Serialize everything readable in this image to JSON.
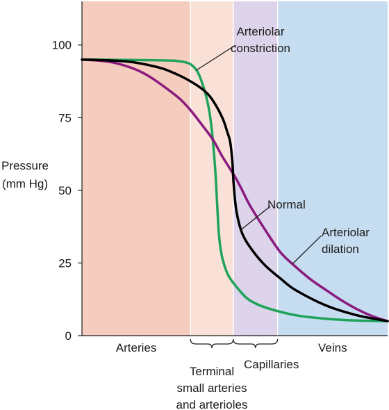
{
  "chart_data": {
    "type": "line",
    "title": "",
    "ylabel": [
      "Pressure",
      "(mm Hg)"
    ],
    "xlabel": "",
    "ylim": [
      0,
      115
    ],
    "yticks": [
      0,
      25,
      50,
      75,
      100
    ],
    "grid": false,
    "regions": [
      {
        "name": "Arteries",
        "color": "#f4cdbf"
      },
      {
        "name": "Terminal small arteries and arterioles",
        "lines": [
          "Terminal",
          "small arteries",
          "and arterioles"
        ],
        "color": "#fae1d8"
      },
      {
        "name": "Capillaries",
        "color": "#ddd3ea"
      },
      {
        "name": "Veins",
        "color": "#c6dcf0"
      }
    ],
    "series": [
      {
        "name": "Normal",
        "color": "#000000",
        "points": [
          [
            0,
            95
          ],
          [
            15,
            94.3
          ],
          [
            25,
            92.3
          ],
          [
            30,
            90.4
          ],
          [
            35,
            87.8
          ],
          [
            40,
            84.3
          ],
          [
            43,
            80.6
          ],
          [
            46,
            74.8
          ],
          [
            47.5,
            70.2
          ],
          [
            48.5,
            66.6
          ],
          [
            49.2,
            59.9
          ],
          [
            49.6,
            52.7
          ],
          [
            50.5,
            43.1
          ],
          [
            52.5,
            35
          ],
          [
            56,
            29
          ],
          [
            60,
            24.1
          ],
          [
            65,
            19.6
          ],
          [
            70,
            15.6
          ],
          [
            80,
            10.3
          ],
          [
            90,
            7
          ],
          [
            100,
            5
          ]
        ]
      },
      {
        "name": "Arteriolar constriction",
        "lines": [
          "Arteriolar",
          "constriction"
        ],
        "color": "#1ea358",
        "points": [
          [
            0,
            95
          ],
          [
            20,
            94.8
          ],
          [
            30,
            94.6
          ],
          [
            34,
            94
          ],
          [
            36,
            93
          ],
          [
            38,
            90.4
          ],
          [
            40,
            84.7
          ],
          [
            41.5,
            78.2
          ],
          [
            42.5,
            70.6
          ],
          [
            43.5,
            58.6
          ],
          [
            44,
            50
          ],
          [
            44.5,
            39.8
          ],
          [
            45,
            32.8
          ],
          [
            46,
            26.4
          ],
          [
            48,
            20.5
          ],
          [
            52,
            15
          ],
          [
            55,
            12.1
          ],
          [
            60,
            9.7
          ],
          [
            70,
            7
          ],
          [
            80,
            5.8
          ],
          [
            90,
            5.2
          ],
          [
            100,
            5
          ]
        ]
      },
      {
        "name": "Arteriolar dilation",
        "lines": [
          "Arteriolar",
          "dilation"
        ],
        "color": "#8a1a7e",
        "points": [
          [
            0,
            95
          ],
          [
            10,
            94
          ],
          [
            20,
            90.4
          ],
          [
            30,
            83.2
          ],
          [
            35,
            78.2
          ],
          [
            40,
            71.5
          ],
          [
            43,
            67.2
          ],
          [
            46,
            61.5
          ],
          [
            50,
            54.8
          ],
          [
            52,
            50.9
          ],
          [
            55,
            44.7
          ],
          [
            60,
            36.3
          ],
          [
            65,
            28.6
          ],
          [
            70,
            23.6
          ],
          [
            75,
            19.2
          ],
          [
            80,
            15.6
          ],
          [
            85,
            12.1
          ],
          [
            90,
            9.1
          ],
          [
            95,
            6.7
          ],
          [
            100,
            5
          ]
        ]
      }
    ],
    "annotations": {
      "constriction_pointer": {
        "series": 1,
        "at": [
          37.4,
          91.3
        ],
        "text_anchor": [
          50.3,
          100
        ]
      },
      "normal_pointer": {
        "series": 0,
        "at": [
          52,
          36.4
        ],
        "text_anchor": [
          61.6,
          44.5
        ]
      },
      "dilation_pointer": {
        "series": 2,
        "at": [
          69,
          24.8
        ],
        "text_anchor": [
          78.2,
          34.3
        ]
      }
    }
  }
}
